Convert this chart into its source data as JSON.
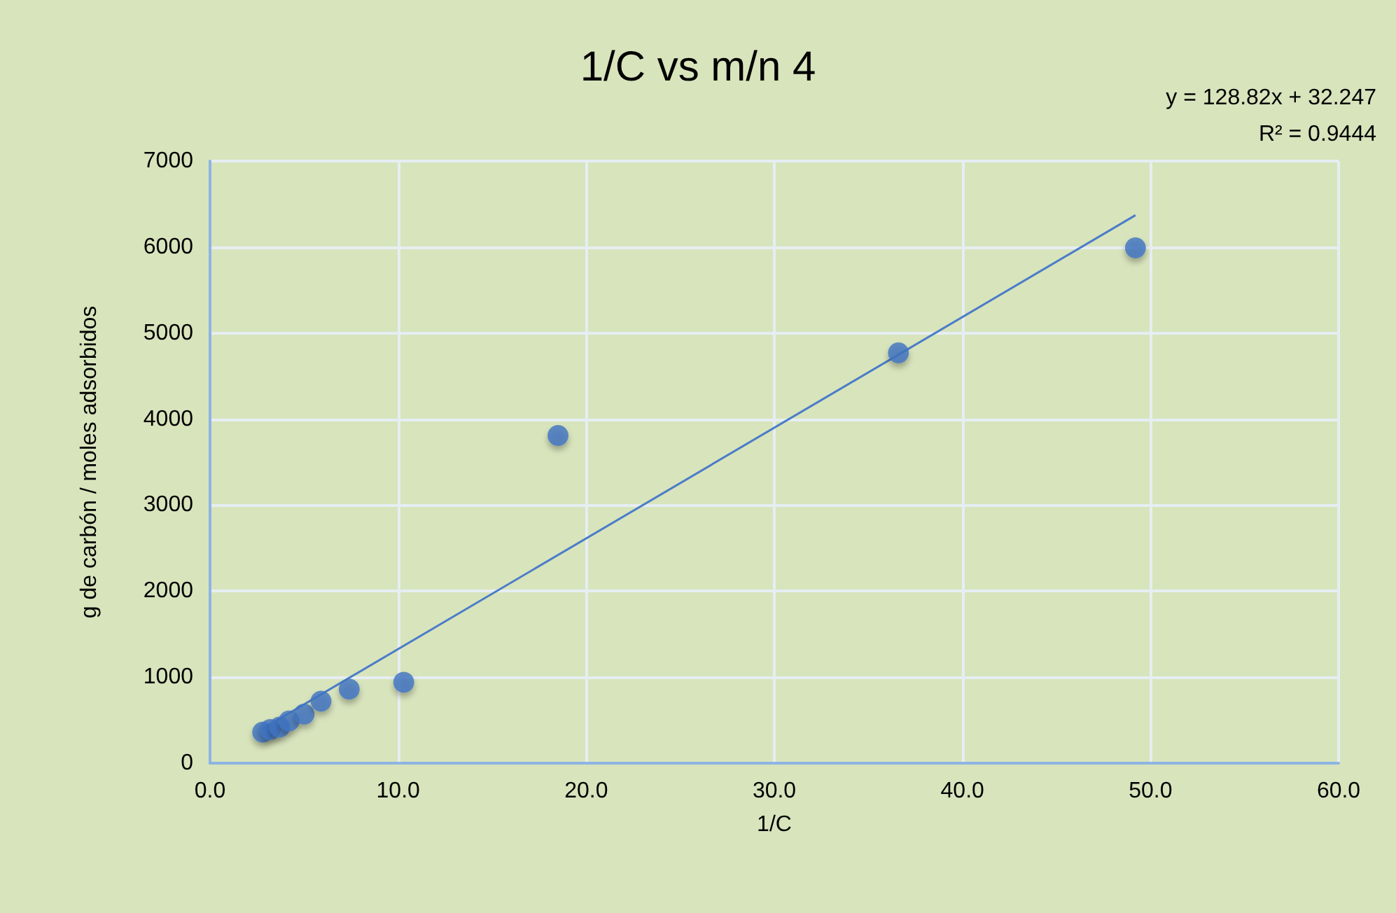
{
  "chart_data": {
    "type": "scatter",
    "title": "1/C vs m/n 4",
    "xlabel": "1/C",
    "ylabel": "g de carbón / moles adsorbidos",
    "annotations": [
      "y = 128.82x + 32.247",
      "R² = 0.9444"
    ],
    "series": [
      {
        "color": "#3f73c2",
        "x": [
          2.8,
          3.2,
          3.7,
          4.2,
          5.0,
          5.9,
          7.4,
          10.3,
          18.5,
          36.6,
          49.2
        ],
        "values": [
          360,
          390,
          420,
          490,
          570,
          720,
          860,
          940,
          3810,
          4770,
          5990
        ]
      },
      {
        "type": "line",
        "color": "#4a7cc9",
        "x": [
          2.8,
          49.2
        ],
        "values": [
          400,
          6370
        ],
        "marker": "none"
      }
    ],
    "marker": "circle",
    "xlim": [
      0,
      60
    ],
    "xticks": [
      {
        "value": 0,
        "label": "0.0"
      },
      {
        "value": 10,
        "label": "10.0"
      },
      {
        "value": 20,
        "label": "20.0"
      },
      {
        "value": 30,
        "label": "30.0"
      },
      {
        "value": 40,
        "label": "40.0"
      },
      {
        "value": 50,
        "label": "50.0"
      },
      {
        "value": 60,
        "label": "60.0"
      }
    ],
    "ylim": [
      0,
      7000
    ],
    "yticks": [
      0,
      1000,
      2000,
      3000,
      4000,
      5000,
      6000,
      7000
    ],
    "grid": true
  }
}
